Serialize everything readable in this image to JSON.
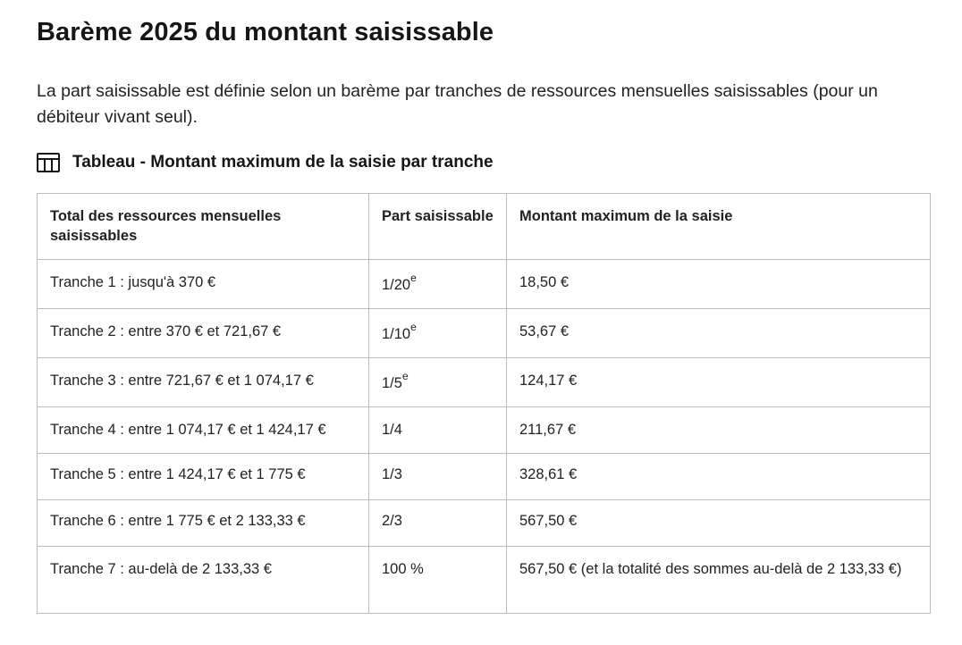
{
  "title": "Barème 2025 du montant saisissable",
  "intro": "La part saisissable est définie selon un barème par tranches de ressources mensuelles saisissables (pour un débiteur vivant seul).",
  "caption": {
    "icon": "table-icon",
    "text": "Tableau - Montant maximum de la saisie par tranche"
  },
  "table": {
    "headers": {
      "col1": "Total des ressources mensuelles saisissables",
      "col2": "Part saisissable",
      "col3": "Montant maximum de la saisie"
    },
    "rows": [
      {
        "tranche": "Tranche 1 : jusqu'à 370 €",
        "part": "1/20",
        "part_sup": "e",
        "montant": "18,50 €"
      },
      {
        "tranche": "Tranche 2 : entre 370 € et 721,67 €",
        "part": "1/10",
        "part_sup": "e",
        "montant": "53,67 €"
      },
      {
        "tranche": "Tranche 3 : entre 721,67 € et 1 074,17 €",
        "part": "1/5",
        "part_sup": "e",
        "montant": "124,17 €"
      },
      {
        "tranche": "Tranche 4 : entre 1 074,17 € et 1 424,17 €",
        "part": "1/4",
        "part_sup": "",
        "montant": "211,67 €"
      },
      {
        "tranche": "Tranche 5 : entre 1 424,17 € et 1 775 €",
        "part": "1/3",
        "part_sup": "",
        "montant": "328,61 €"
      },
      {
        "tranche": "Tranche 6 : entre 1 775 € et 2 133,33 €",
        "part": "2/3",
        "part_sup": "",
        "montant": "567,50 €"
      },
      {
        "tranche": "Tranche 7 : au-delà de 2 133,33 €",
        "part": "100 %",
        "part_sup": "",
        "montant": "567,50 € (et la totalité des sommes au-delà de 2 133,33 €)"
      }
    ]
  }
}
